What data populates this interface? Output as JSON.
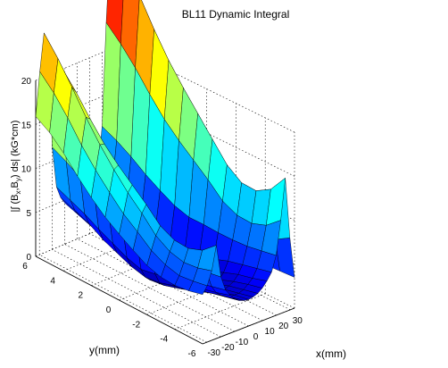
{
  "chart_data": {
    "type": "surface",
    "title": "BL11 Dynamic Integral",
    "xlabel": "x(mm)",
    "ylabel": "y(mm)",
    "zlabel": "|∫ (Bx,By) ds| (kG*cm)",
    "zlabel_parts": {
      "open": "|∫ (B",
      "sub1": "x",
      "mid": ",B",
      "sub2": "y",
      "close": ") ds| (kG*cm)"
    },
    "x_ticks": [
      -30,
      -20,
      -10,
      0,
      10,
      20,
      30
    ],
    "y_ticks": [
      6,
      4,
      2,
      0,
      -2,
      -4,
      -6
    ],
    "z_ticks": [
      0,
      5,
      10,
      15,
      20
    ],
    "xlim": [
      -33,
      33
    ],
    "ylim": [
      -6,
      6
    ],
    "zlim": [
      0,
      20
    ],
    "grid": true,
    "colormap": "jet",
    "mesh_x": [
      -33,
      -29.7,
      -26.4,
      -23.1,
      -19.8,
      -16.5,
      -13.2,
      -9.9,
      -6.6,
      -3.3,
      0,
      3.3,
      6.6,
      9.9,
      13.2,
      16.5,
      19.8,
      23.1,
      26.4,
      29.7,
      33
    ],
    "mesh_y": [
      -6,
      -5,
      -4,
      -3,
      -2,
      -1,
      0,
      1,
      2,
      3,
      4,
      5,
      6
    ],
    "mesh_z": [
      [
        5.6,
        6.4,
        7.9,
        10.6,
        6.8,
        5.1,
        4.3,
        3.7,
        3.3,
        3.1,
        3,
        3.1,
        3.3,
        3.7,
        4.3,
        5.1,
        6.8,
        10.6,
        15.2,
        8.2,
        3.5
      ],
      [
        5.2,
        6.1,
        7.4,
        9.2,
        6.5,
        4.7,
        3.8,
        3.3,
        2.9,
        2.7,
        2.7,
        2.7,
        2.9,
        3.3,
        3.8,
        4.7,
        6.5,
        9.2,
        13.1,
        7.2,
        3.4
      ],
      [
        5,
        5.9,
        7.2,
        8.6,
        6.2,
        4.3,
        3.4,
        2.8,
        2.5,
        2.3,
        2.2,
        2.3,
        2.5,
        2.8,
        3.4,
        4.3,
        6.2,
        8.6,
        12.1,
        6.6,
        3.3
      ],
      [
        5.1,
        6.3,
        7.6,
        8.7,
        6.1,
        3.9,
        2.8,
        2.2,
        1.9,
        1.8,
        1.7,
        1.8,
        1.9,
        2.2,
        2.8,
        3.9,
        6.1,
        8.7,
        12.2,
        6.6,
        3.2
      ],
      [
        5.6,
        7.1,
        8.6,
        9.5,
        6.1,
        3.3,
        2.1,
        1.6,
        1.3,
        1.2,
        1.2,
        1.2,
        1.3,
        1.6,
        2.1,
        3.3,
        6.1,
        9.5,
        13.4,
        7,
        3.2
      ],
      [
        6.5,
        8.4,
        10.3,
        11.1,
        6.2,
        2.8,
        1.6,
        1.1,
        0.9,
        0.8,
        0.8,
        0.8,
        0.9,
        1.1,
        1.6,
        2.8,
        6.2,
        11.1,
        15.5,
        7.8,
        3.1
      ],
      [
        7.5,
        9.6,
        11.8,
        12.5,
        6.2,
        2.5,
        1.4,
        0.9,
        0.7,
        0.6,
        0.6,
        0.6,
        0.7,
        0.9,
        1.4,
        2.5,
        6.2,
        12.5,
        17.6,
        8.5,
        3.1
      ],
      [
        8.6,
        11.2,
        13.6,
        13.9,
        6.7,
        3,
        1.8,
        1.3,
        1,
        0.9,
        0.9,
        0.9,
        1,
        1.3,
        1.8,
        3,
        6.7,
        13.9,
        19.7,
        9.4,
        3.1
      ],
      [
        10,
        12.9,
        15.6,
        15.5,
        7.6,
        3.8,
        2.5,
        1.9,
        1.6,
        1.5,
        1.5,
        1.5,
        1.6,
        1.9,
        2.5,
        3.8,
        7.6,
        15.5,
        22,
        10.3,
        3.1
      ],
      [
        11.6,
        14.9,
        17.9,
        17.5,
        8.6,
        4.6,
        3.2,
        2.6,
        2.3,
        2.2,
        2.2,
        2.2,
        2.3,
        2.6,
        3.2,
        4.6,
        8.6,
        17.5,
        24.7,
        11.5,
        3
      ],
      [
        13.4,
        17.2,
        20.5,
        19.7,
        9.8,
        5.5,
        4.2,
        3.5,
        3.2,
        3,
        3,
        3,
        3.2,
        3.5,
        4.2,
        5.5,
        9.8,
        19.7,
        27.7,
        12.8,
        3
      ],
      [
        14.9,
        19.2,
        22.9,
        21.6,
        10.8,
        6.2,
        4.9,
        4.1,
        3.8,
        3.6,
        3.6,
        3.6,
        3.8,
        4.1,
        4.9,
        6.2,
        10.8,
        21.6,
        30.2,
        13.9,
        3
      ],
      [
        15.9,
        20.8,
        25,
        23.2,
        11.6,
        6.9,
        5.5,
        4.7,
        4.3,
        4.2,
        4.1,
        4.2,
        4.3,
        4.7,
        5.5,
        6.9,
        11.6,
        23.2,
        32.3,
        14.8,
        3
      ]
    ]
  }
}
